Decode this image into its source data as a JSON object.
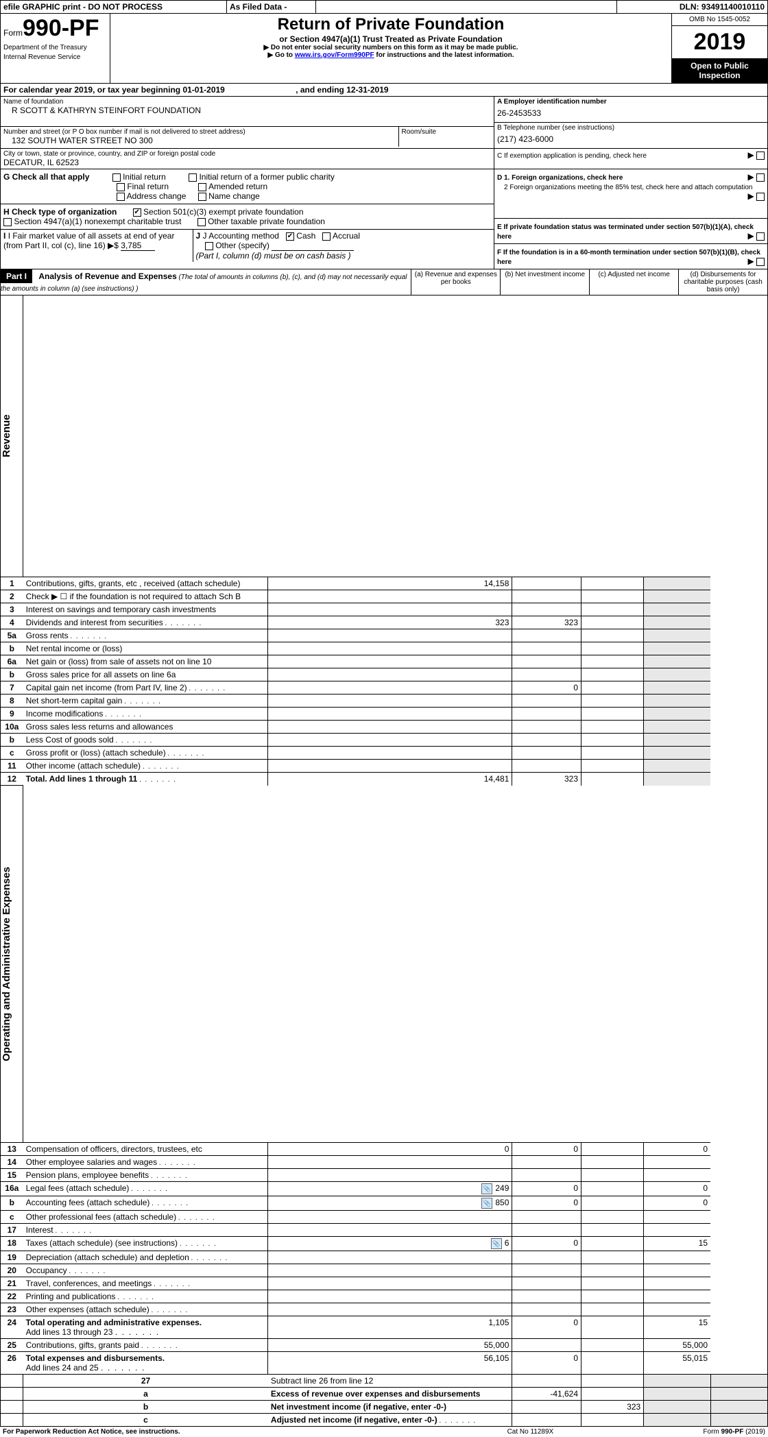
{
  "topbar": {
    "efile": "efile GRAPHIC print - DO NOT PROCESS",
    "asfiled": "As Filed Data -",
    "dln_label": "DLN:",
    "dln": "93491140010110"
  },
  "header": {
    "form_prefix": "Form",
    "form_number": "990-PF",
    "dept": "Department of the Treasury",
    "irs": "Internal Revenue Service",
    "title": "Return of Private Foundation",
    "subtitle": "or Section 4947(a)(1) Trust Treated as Private Foundation",
    "warning1": "▶ Do not enter social security numbers on this form as it may be made public.",
    "warning2_pre": "▶ Go to ",
    "warning2_link": "www.irs.gov/Form990PF",
    "warning2_post": " for instructions and the latest information.",
    "omb": "OMB No 1545-0052",
    "year": "2019",
    "open": "Open to Public Inspection"
  },
  "period": {
    "label_pre": "For calendar year 2019, or tax year beginning ",
    "start": "01-01-2019",
    "label_mid": " , and ending ",
    "end": "12-31-2019"
  },
  "nameblock": {
    "name_label": "Name of foundation",
    "name": "R SCOTT & KATHRYN STEINFORT FOUNDATION",
    "addr_label": "Number and street (or P O  box number if mail is not delivered to street address)",
    "addr": "132 SOUTH WATER STREET NO 300",
    "room_label": "Room/suite",
    "city_label": "City or town, state or province, country, and ZIP or foreign postal code",
    "city": "DECATUR, IL  62523"
  },
  "rightblock": {
    "a_label": "A Employer identification number",
    "a_val": "26-2453533",
    "b_label": "B Telephone number (see instructions)",
    "b_val": "(217) 423-6000",
    "c_label": "C If exemption application is pending, check here",
    "d1": "D 1. Foreign organizations, check here",
    "d2": "2 Foreign organizations meeting the 85% test, check here and attach computation",
    "e": "E  If private foundation status was terminated under section 507(b)(1)(A), check here",
    "f": "F  If the foundation is in a 60-month termination under section 507(b)(1)(B), check here"
  },
  "g": {
    "label": "G Check all that apply",
    "opts": [
      "Initial return",
      "Initial return of a former public charity",
      "Final return",
      "Amended return",
      "Address change",
      "Name change"
    ]
  },
  "h": {
    "label": "H Check type of organization",
    "501c3": "Section 501(c)(3) exempt private foundation",
    "4947": "Section 4947(a)(1) nonexempt charitable trust",
    "other_tax": "Other taxable private foundation"
  },
  "i": {
    "label": "I Fair market value of all assets at end of year (from Part II, col  (c), line 16)",
    "arrow": "▶$",
    "val": "3,785"
  },
  "j": {
    "label": "J Accounting method",
    "cash": "Cash",
    "accrual": "Accrual",
    "other": "Other (specify)",
    "note": "(Part I, column (d) must be on cash basis )"
  },
  "part1": {
    "label": "Part I",
    "title": "Analysis of Revenue and Expenses",
    "title_note": " (The total of amounts in columns (b), (c), and (d) may not necessarily equal the amounts in column (a) (see instructions) )",
    "col_a": "(a) Revenue and expenses per books",
    "col_b": "(b) Net investment income",
    "col_c": "(c) Adjusted net income",
    "col_d": "(d) Disbursements for charitable purposes (cash basis only)"
  },
  "vertlabels": {
    "revenue": "Revenue",
    "expenses": "Operating and Administrative Expenses"
  },
  "rows": [
    {
      "n": "1",
      "t": "Contributions, gifts, grants, etc , received (attach schedule)",
      "a": "14,158",
      "b": "",
      "c": "",
      "d": ""
    },
    {
      "n": "2",
      "t": "Check ▶ ☐ if the foundation is not required to attach Sch  B",
      "a": "",
      "b": "",
      "c": "",
      "d": ""
    },
    {
      "n": "3",
      "t": "Interest on savings and temporary cash investments",
      "a": "",
      "b": "",
      "c": "",
      "d": ""
    },
    {
      "n": "4",
      "t": "Dividends and interest from securities",
      "a": "323",
      "b": "323",
      "c": "",
      "d": "",
      "dots": true
    },
    {
      "n": "5a",
      "t": "Gross rents",
      "a": "",
      "b": "",
      "c": "",
      "d": "",
      "dots": true
    },
    {
      "n": "b",
      "t": "Net rental income or (loss)",
      "a": "",
      "b": "",
      "c": "",
      "d": "",
      "halfcell": true
    },
    {
      "n": "6a",
      "t": "Net gain or (loss) from sale of assets not on line 10",
      "a": "",
      "b": "",
      "c": "",
      "d": ""
    },
    {
      "n": "b",
      "t": "Gross sales price for all assets on line 6a",
      "a": "",
      "b": "",
      "c": "",
      "d": "",
      "halfcell": true
    },
    {
      "n": "7",
      "t": "Capital gain net income (from Part IV, line 2)",
      "a": "",
      "b": "0",
      "c": "",
      "d": "",
      "dots": true
    },
    {
      "n": "8",
      "t": "Net short-term capital gain",
      "a": "",
      "b": "",
      "c": "",
      "d": "",
      "dots": true
    },
    {
      "n": "9",
      "t": "Income modifications",
      "a": "",
      "b": "",
      "c": "",
      "d": "",
      "dots": true
    },
    {
      "n": "10a",
      "t": "Gross sales less returns and allowances",
      "a": "",
      "b": "",
      "c": "",
      "d": "",
      "halfcell": true
    },
    {
      "n": "b",
      "t": "Less  Cost of goods sold",
      "a": "",
      "b": "",
      "c": "",
      "d": "",
      "halfcell": true,
      "dots": true
    },
    {
      "n": "c",
      "t": "Gross profit or (loss) (attach schedule)",
      "a": "",
      "b": "",
      "c": "",
      "d": "",
      "dots": true
    },
    {
      "n": "11",
      "t": "Other income (attach schedule)",
      "a": "",
      "b": "",
      "c": "",
      "d": "",
      "dots": true
    },
    {
      "n": "12",
      "t": "Total. Add lines 1 through 11",
      "a": "14,481",
      "b": "323",
      "c": "",
      "d": "",
      "bold": true,
      "dots": true
    }
  ],
  "exp_rows": [
    {
      "n": "13",
      "t": "Compensation of officers, directors, trustees, etc",
      "a": "0",
      "b": "0",
      "c": "",
      "d": "0"
    },
    {
      "n": "14",
      "t": "Other employee salaries and wages",
      "a": "",
      "b": "",
      "c": "",
      "d": "",
      "dots": true
    },
    {
      "n": "15",
      "t": "Pension plans, employee benefits",
      "a": "",
      "b": "",
      "c": "",
      "d": "",
      "dots": true
    },
    {
      "n": "16a",
      "t": "Legal fees (attach schedule)",
      "a": "249",
      "b": "0",
      "c": "",
      "d": "0",
      "icon": true,
      "dots": true
    },
    {
      "n": "b",
      "t": "Accounting fees (attach schedule)",
      "a": "850",
      "b": "0",
      "c": "",
      "d": "0",
      "icon": true,
      "dots": true
    },
    {
      "n": "c",
      "t": "Other professional fees (attach schedule)",
      "a": "",
      "b": "",
      "c": "",
      "d": "",
      "dots": true
    },
    {
      "n": "17",
      "t": "Interest",
      "a": "",
      "b": "",
      "c": "",
      "d": "",
      "dots": true
    },
    {
      "n": "18",
      "t": "Taxes (attach schedule) (see instructions)",
      "a": "6",
      "b": "0",
      "c": "",
      "d": "15",
      "icon": true,
      "dots": true
    },
    {
      "n": "19",
      "t": "Depreciation (attach schedule) and depletion",
      "a": "",
      "b": "",
      "c": "",
      "d": "",
      "dots": true
    },
    {
      "n": "20",
      "t": "Occupancy",
      "a": "",
      "b": "",
      "c": "",
      "d": "",
      "dots": true
    },
    {
      "n": "21",
      "t": "Travel, conferences, and meetings",
      "a": "",
      "b": "",
      "c": "",
      "d": "",
      "dots": true
    },
    {
      "n": "22",
      "t": "Printing and publications",
      "a": "",
      "b": "",
      "c": "",
      "d": "",
      "dots": true
    },
    {
      "n": "23",
      "t": "Other expenses (attach schedule)",
      "a": "",
      "b": "",
      "c": "",
      "d": "",
      "dots": true
    },
    {
      "n": "24",
      "t": "Total operating and administrative expenses. ",
      "t2": "Add lines 13 through 23",
      "a": "1,105",
      "b": "0",
      "c": "",
      "d": "15",
      "bold": true,
      "dots": true
    },
    {
      "n": "25",
      "t": "Contributions, gifts, grants paid",
      "a": "55,000",
      "b": "",
      "c": "",
      "d": "55,000",
      "dots": true
    },
    {
      "n": "26",
      "t": "Total expenses and disbursements. ",
      "t2": "Add lines 24 and 25",
      "a": "56,105",
      "b": "0",
      "c": "",
      "d": "55,015",
      "bold": true
    }
  ],
  "bottom_rows": [
    {
      "n": "27",
      "t": "Subtract line 26 from line 12",
      "a": "",
      "b": "",
      "c": "",
      "d": ""
    },
    {
      "n": "a",
      "t": "Excess of revenue over expenses and disbursements",
      "a": "-41,624",
      "b": "",
      "c": "",
      "d": "",
      "bold": true
    },
    {
      "n": "b",
      "t": "Net investment income (if negative, enter -0-)",
      "a": "",
      "b": "323",
      "c": "",
      "d": "",
      "bold": true
    },
    {
      "n": "c",
      "t": "Adjusted net income (if negative, enter -0-)",
      "a": "",
      "b": "",
      "c": "",
      "d": "",
      "bold": true,
      "dots": true
    }
  ],
  "footer": {
    "left": "For Paperwork Reduction Act Notice, see instructions.",
    "mid": "Cat  No  11289X",
    "right": "Form 990-PF (2019)",
    "right_bold": "990-PF"
  }
}
